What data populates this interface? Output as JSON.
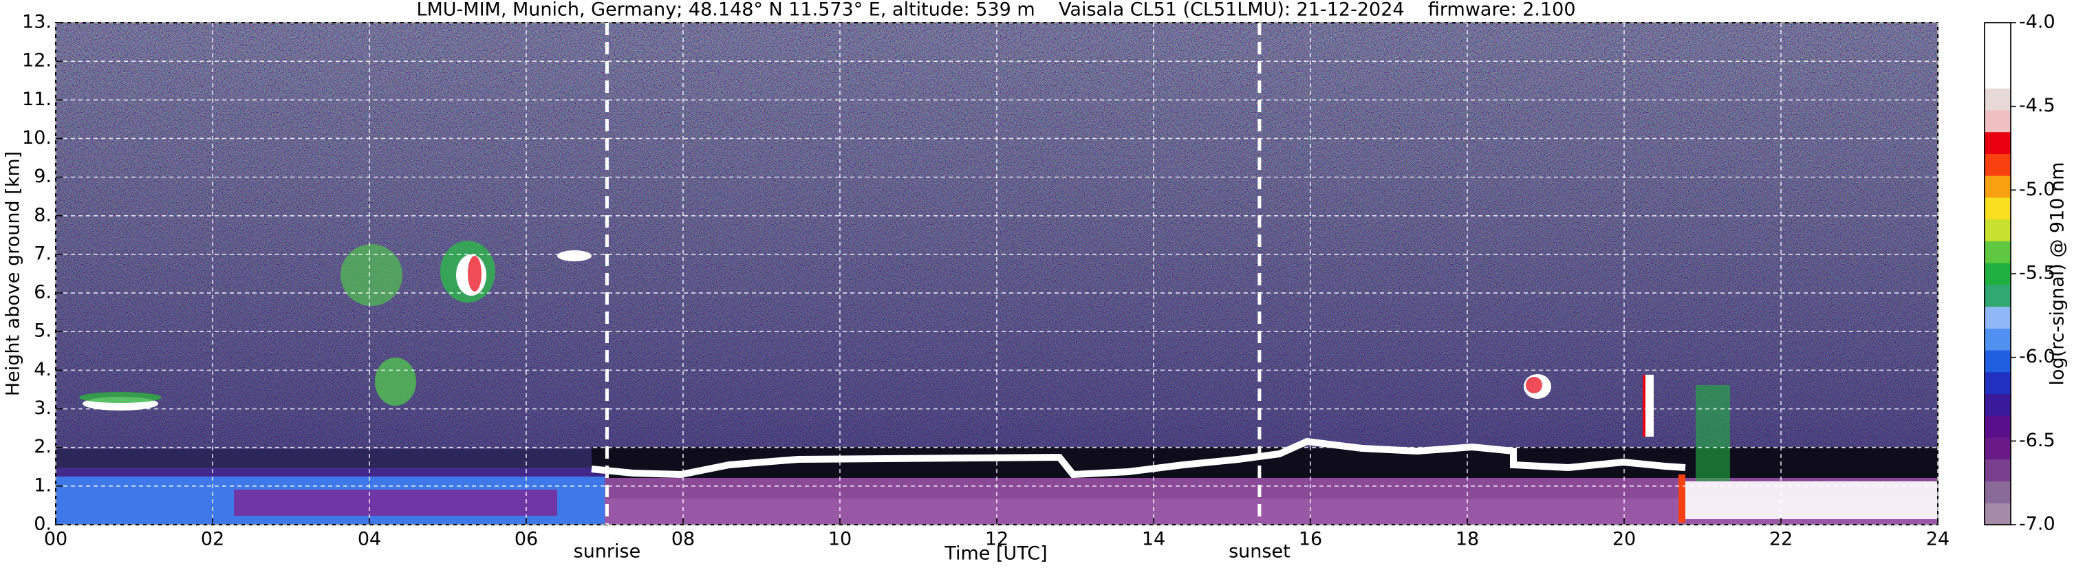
{
  "chart_data": {
    "type": "heatmap",
    "title": "LMU-MIM, Munich, Germany; 48.148° N 11.573° E, altitude: 539 m    Vaisala CL51 (CL51LMU): 21-12-2024    firmware: 2.100",
    "x_label": "Time [UTC]",
    "y_label": "Height above ground [km]",
    "xlim": [
      0,
      24
    ],
    "xticks": [
      {
        "value": 0,
        "label": "00"
      },
      {
        "value": 2,
        "label": "02"
      },
      {
        "value": 4,
        "label": "04"
      },
      {
        "value": 6,
        "label": "06"
      },
      {
        "value": 8,
        "label": "08"
      },
      {
        "value": 10,
        "label": "10"
      },
      {
        "value": 12,
        "label": "12"
      },
      {
        "value": 14,
        "label": "14"
      },
      {
        "value": 16,
        "label": "16"
      },
      {
        "value": 18,
        "label": "18"
      },
      {
        "value": 20,
        "label": "20"
      },
      {
        "value": 22,
        "label": "22"
      },
      {
        "value": 24,
        "label": "24"
      }
    ],
    "ylim": [
      0,
      13
    ],
    "yticks": [
      {
        "value": 0,
        "label": "0."
      },
      {
        "value": 1,
        "label": "1."
      },
      {
        "value": 2,
        "label": "2."
      },
      {
        "value": 3,
        "label": "3."
      },
      {
        "value": 4,
        "label": "4."
      },
      {
        "value": 5,
        "label": "5."
      },
      {
        "value": 6,
        "label": "6."
      },
      {
        "value": 7,
        "label": "7."
      },
      {
        "value": 8,
        "label": "8."
      },
      {
        "value": 9,
        "label": "9."
      },
      {
        "value": 10,
        "label": "10."
      },
      {
        "value": 11,
        "label": "11."
      },
      {
        "value": 12,
        "label": "12."
      },
      {
        "value": 13,
        "label": "13."
      }
    ],
    "grid": true,
    "markers": [
      {
        "label": "sunrise",
        "x": 7.03
      },
      {
        "label": "sunset",
        "x": 15.35
      }
    ],
    "colorbar": {
      "label": "log(rc-signal) @ 910 nm",
      "lim": [
        -7,
        -4
      ],
      "ticks": [
        {
          "value": -7,
          "label": "-7.0"
        },
        {
          "value": -6.5,
          "label": "-6.5"
        },
        {
          "value": -6,
          "label": "-6.0"
        },
        {
          "value": -5.5,
          "label": "-5.5"
        },
        {
          "value": -5,
          "label": "-5.0"
        },
        {
          "value": -4.5,
          "label": "-4.5"
        },
        {
          "value": -4,
          "label": "-4.0"
        }
      ],
      "colors": [
        "#a48ca8",
        "#8a6a98",
        "#7a3f8e",
        "#6a1a86",
        "#5a0f8a",
        "#3a1a9a",
        "#2030c0",
        "#2060e0",
        "#5090f0",
        "#90b8f8",
        "#30a870",
        "#20b040",
        "#60c840",
        "#c8e030",
        "#f8e020",
        "#f8a010",
        "#f84010",
        "#e80010",
        "#f0c0c0",
        "#e8d8d8",
        "#ffffff",
        "#ffffff",
        "#ffffff"
      ]
    }
  }
}
